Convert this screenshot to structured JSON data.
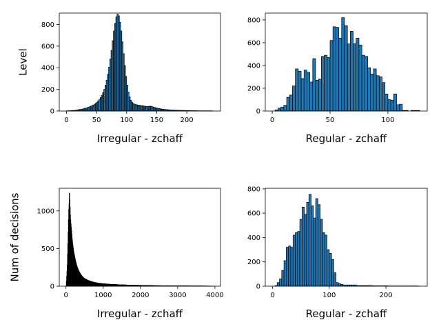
{
  "bar_color": "#1f77b4",
  "edge_color": "#000000",
  "chart_data": [
    {
      "type": "bar",
      "xlabel": "Irregular - zchaff",
      "ylabel": "Level",
      "xlim": [
        -12,
        256
      ],
      "ylim": [
        0,
        905
      ],
      "xticks": [
        0,
        50,
        100,
        150,
        200
      ],
      "yticks": [
        0,
        200,
        400,
        600,
        800
      ],
      "bin_width": 2,
      "bins": [
        [
          0,
          2
        ],
        [
          2,
          2
        ],
        [
          4,
          3
        ],
        [
          6,
          3
        ],
        [
          8,
          4
        ],
        [
          10,
          5
        ],
        [
          12,
          6
        ],
        [
          14,
          7
        ],
        [
          16,
          9
        ],
        [
          18,
          11
        ],
        [
          20,
          13
        ],
        [
          22,
          15
        ],
        [
          24,
          17
        ],
        [
          26,
          19
        ],
        [
          28,
          22
        ],
        [
          30,
          25
        ],
        [
          32,
          28
        ],
        [
          34,
          32
        ],
        [
          36,
          36
        ],
        [
          38,
          40
        ],
        [
          40,
          45
        ],
        [
          42,
          50
        ],
        [
          44,
          56
        ],
        [
          46,
          63
        ],
        [
          48,
          72
        ],
        [
          50,
          82
        ],
        [
          52,
          94
        ],
        [
          54,
          108
        ],
        [
          56,
          125
        ],
        [
          58,
          145
        ],
        [
          60,
          170
        ],
        [
          62,
          200
        ],
        [
          64,
          240
        ],
        [
          66,
          285
        ],
        [
          68,
          340
        ],
        [
          70,
          405
        ],
        [
          72,
          480
        ],
        [
          74,
          560
        ],
        [
          76,
          650
        ],
        [
          78,
          740
        ],
        [
          80,
          810
        ],
        [
          82,
          870
        ],
        [
          84,
          895
        ],
        [
          86,
          880
        ],
        [
          88,
          820
        ],
        [
          90,
          740
        ],
        [
          92,
          640
        ],
        [
          94,
          530
        ],
        [
          96,
          420
        ],
        [
          98,
          320
        ],
        [
          100,
          240
        ],
        [
          102,
          175
        ],
        [
          104,
          130
        ],
        [
          106,
          100
        ],
        [
          108,
          82
        ],
        [
          110,
          70
        ],
        [
          112,
          64
        ],
        [
          114,
          60
        ],
        [
          116,
          57
        ],
        [
          118,
          55
        ],
        [
          120,
          54
        ],
        [
          122,
          52
        ],
        [
          124,
          50
        ],
        [
          126,
          48
        ],
        [
          128,
          46
        ],
        [
          130,
          44
        ],
        [
          132,
          42
        ],
        [
          134,
          41
        ],
        [
          136,
          43
        ],
        [
          138,
          45
        ],
        [
          140,
          44
        ],
        [
          142,
          40
        ],
        [
          144,
          36
        ],
        [
          146,
          32
        ],
        [
          148,
          29
        ],
        [
          150,
          26
        ],
        [
          152,
          24
        ],
        [
          154,
          22
        ],
        [
          156,
          20
        ],
        [
          158,
          18
        ],
        [
          160,
          17
        ],
        [
          162,
          15
        ],
        [
          164,
          14
        ],
        [
          166,
          13
        ],
        [
          168,
          12
        ],
        [
          170,
          11
        ],
        [
          172,
          10
        ],
        [
          174,
          9
        ],
        [
          176,
          9
        ],
        [
          178,
          8
        ],
        [
          180,
          8
        ],
        [
          182,
          7
        ],
        [
          184,
          7
        ],
        [
          186,
          6
        ],
        [
          188,
          6
        ],
        [
          190,
          6
        ],
        [
          192,
          5
        ],
        [
          194,
          5
        ],
        [
          196,
          5
        ],
        [
          198,
          4
        ],
        [
          200,
          4
        ],
        [
          202,
          4
        ],
        [
          204,
          4
        ],
        [
          206,
          3
        ],
        [
          208,
          3
        ],
        [
          210,
          3
        ],
        [
          212,
          3
        ],
        [
          214,
          3
        ],
        [
          216,
          3
        ],
        [
          218,
          2
        ],
        [
          220,
          2
        ],
        [
          222,
          2
        ],
        [
          224,
          2
        ],
        [
          226,
          2
        ],
        [
          228,
          2
        ],
        [
          230,
          2
        ],
        [
          232,
          2
        ],
        [
          234,
          2
        ],
        [
          236,
          2
        ],
        [
          238,
          2
        ],
        [
          240,
          2
        ],
        [
          242,
          1
        ]
      ]
    },
    {
      "type": "bar",
      "xlabel": "Regular - zchaff",
      "ylabel": "",
      "xlim": [
        -6,
        134
      ],
      "ylim": [
        0,
        860
      ],
      "xticks": [
        0,
        50,
        100
      ],
      "yticks": [
        0,
        200,
        400,
        600,
        800
      ],
      "bin_width": 2.5,
      "bins": [
        [
          2.5,
          10
        ],
        [
          5,
          25
        ],
        [
          7.5,
          35
        ],
        [
          10,
          50
        ],
        [
          12.5,
          120
        ],
        [
          15,
          140
        ],
        [
          17.5,
          220
        ],
        [
          20,
          370
        ],
        [
          22.5,
          350
        ],
        [
          25,
          285
        ],
        [
          27.5,
          360
        ],
        [
          30,
          340
        ],
        [
          32.5,
          255
        ],
        [
          35,
          460
        ],
        [
          37.5,
          270
        ],
        [
          40,
          280
        ],
        [
          42.5,
          480
        ],
        [
          45,
          490
        ],
        [
          47.5,
          470
        ],
        [
          50,
          620
        ],
        [
          52.5,
          740
        ],
        [
          55,
          735
        ],
        [
          57.5,
          640
        ],
        [
          60,
          820
        ],
        [
          62.5,
          750
        ],
        [
          65,
          590
        ],
        [
          67.5,
          700
        ],
        [
          70,
          590
        ],
        [
          72.5,
          640
        ],
        [
          75,
          580
        ],
        [
          77.5,
          490
        ],
        [
          80,
          480
        ],
        [
          82.5,
          380
        ],
        [
          85,
          325
        ],
        [
          87.5,
          370
        ],
        [
          90,
          310
        ],
        [
          92.5,
          300
        ],
        [
          95,
          250
        ],
        [
          97.5,
          150
        ],
        [
          100,
          100
        ],
        [
          102.5,
          95
        ],
        [
          105,
          150
        ],
        [
          107.5,
          55
        ],
        [
          110,
          60
        ],
        [
          112.5,
          5
        ],
        [
          115,
          5
        ],
        [
          117.5,
          0
        ],
        [
          120,
          5
        ],
        [
          122.5,
          5
        ],
        [
          125,
          5
        ]
      ]
    },
    {
      "type": "bar",
      "xlabel": "Irregular - zchaff",
      "ylabel": "Num of decisions",
      "xlim": [
        -180,
        4150
      ],
      "ylim": [
        0,
        1300
      ],
      "xticks": [
        0,
        1000,
        2000,
        3000,
        4000
      ],
      "yticks": [
        0,
        500,
        1000
      ],
      "bin_width": 8,
      "envelope": [
        [
          0,
          0
        ],
        [
          10,
          80
        ],
        [
          30,
          250
        ],
        [
          50,
          600
        ],
        [
          60,
          800
        ],
        [
          70,
          1000
        ],
        [
          80,
          1100
        ],
        [
          88,
          1235
        ],
        [
          96,
          1150
        ],
        [
          104,
          1050
        ],
        [
          112,
          950
        ],
        [
          120,
          880
        ],
        [
          140,
          760
        ],
        [
          160,
          640
        ],
        [
          180,
          540
        ],
        [
          200,
          470
        ],
        [
          230,
          390
        ],
        [
          260,
          320
        ],
        [
          300,
          250
        ],
        [
          350,
          190
        ],
        [
          400,
          150
        ],
        [
          450,
          120
        ],
        [
          500,
          100
        ],
        [
          600,
          75
        ],
        [
          700,
          58
        ],
        [
          800,
          46
        ],
        [
          900,
          38
        ],
        [
          1000,
          32
        ],
        [
          1200,
          25
        ],
        [
          1400,
          20
        ],
        [
          1600,
          16
        ],
        [
          1800,
          13
        ],
        [
          2000,
          11
        ],
        [
          2200,
          9
        ],
        [
          2400,
          7
        ],
        [
          2600,
          6
        ],
        [
          2800,
          5
        ],
        [
          3000,
          4
        ],
        [
          3200,
          4
        ],
        [
          3400,
          3
        ],
        [
          3600,
          3
        ],
        [
          3800,
          2
        ],
        [
          3950,
          1
        ]
      ]
    },
    {
      "type": "bar",
      "xlabel": "Regular - zchaff",
      "ylabel": "",
      "xlim": [
        -13,
        273
      ],
      "ylim": [
        0,
        805
      ],
      "xticks": [
        0,
        100,
        200
      ],
      "yticks": [
        0,
        200,
        400,
        600,
        800
      ],
      "bin_width": 4,
      "bins": [
        [
          4,
          5
        ],
        [
          8,
          30
        ],
        [
          12,
          60
        ],
        [
          16,
          130
        ],
        [
          20,
          210
        ],
        [
          24,
          320
        ],
        [
          28,
          330
        ],
        [
          32,
          320
        ],
        [
          36,
          420
        ],
        [
          40,
          440
        ],
        [
          44,
          450
        ],
        [
          48,
          550
        ],
        [
          52,
          650
        ],
        [
          56,
          590
        ],
        [
          60,
          690
        ],
        [
          64,
          755
        ],
        [
          68,
          660
        ],
        [
          72,
          560
        ],
        [
          76,
          720
        ],
        [
          80,
          670
        ],
        [
          84,
          550
        ],
        [
          88,
          440
        ],
        [
          92,
          420
        ],
        [
          96,
          300
        ],
        [
          100,
          270
        ],
        [
          104,
          220
        ],
        [
          108,
          110
        ],
        [
          112,
          30
        ],
        [
          116,
          20
        ],
        [
          120,
          15
        ],
        [
          124,
          10
        ],
        [
          128,
          10
        ],
        [
          132,
          10
        ],
        [
          136,
          10
        ],
        [
          140,
          10
        ],
        [
          144,
          10
        ],
        [
          148,
          5
        ],
        [
          152,
          5
        ],
        [
          156,
          5
        ],
        [
          160,
          5
        ],
        [
          164,
          5
        ],
        [
          168,
          5
        ],
        [
          172,
          5
        ],
        [
          176,
          3
        ],
        [
          180,
          3
        ],
        [
          184,
          3
        ],
        [
          188,
          3
        ],
        [
          192,
          3
        ],
        [
          196,
          3
        ],
        [
          200,
          3
        ],
        [
          204,
          2
        ],
        [
          208,
          2
        ],
        [
          212,
          2
        ],
        [
          216,
          2
        ],
        [
          220,
          2
        ],
        [
          224,
          2
        ],
        [
          228,
          2
        ],
        [
          232,
          2
        ],
        [
          236,
          2
        ],
        [
          240,
          2
        ],
        [
          244,
          2
        ],
        [
          248,
          2
        ],
        [
          252,
          2
        ],
        [
          256,
          1
        ]
      ]
    }
  ]
}
